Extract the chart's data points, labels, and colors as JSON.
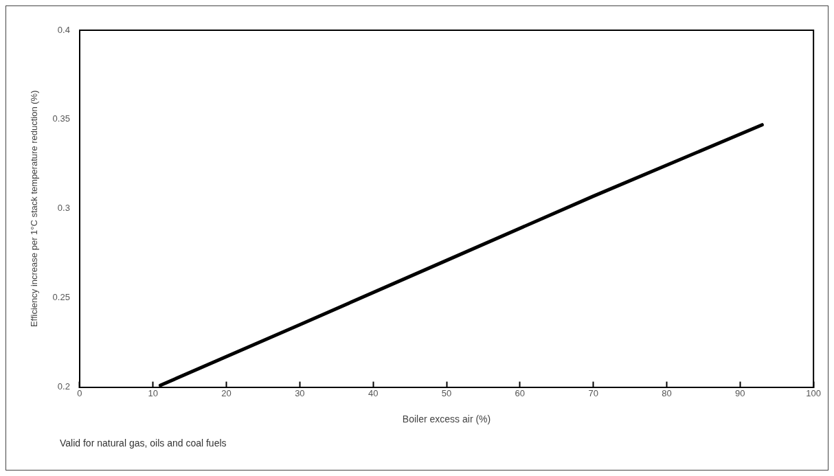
{
  "chart_data": {
    "type": "line",
    "xlabel": "Boiler excess air (%)",
    "ylabel": "Efficiency increase per 1°C stack temperature reduction (%)",
    "annotations": [
      "Valid for natural gas, oils and coal fuels"
    ],
    "x": [
      11,
      30,
      50,
      70,
      93
    ],
    "series": [
      {
        "color": "#000000",
        "values": [
          0.201,
          0.235,
          0.271,
          0.307,
          0.347
        ]
      }
    ],
    "xlim": [
      0,
      100
    ],
    "xticks": [
      0,
      10,
      20,
      30,
      40,
      50,
      60,
      70,
      80,
      90,
      100
    ],
    "ylim": [
      0.2,
      0.4
    ],
    "yticks": [
      0.2,
      0.25,
      0.3,
      0.35,
      0.4
    ],
    "grid": false,
    "legend": false,
    "marker": "none",
    "line_style": "solid"
  }
}
